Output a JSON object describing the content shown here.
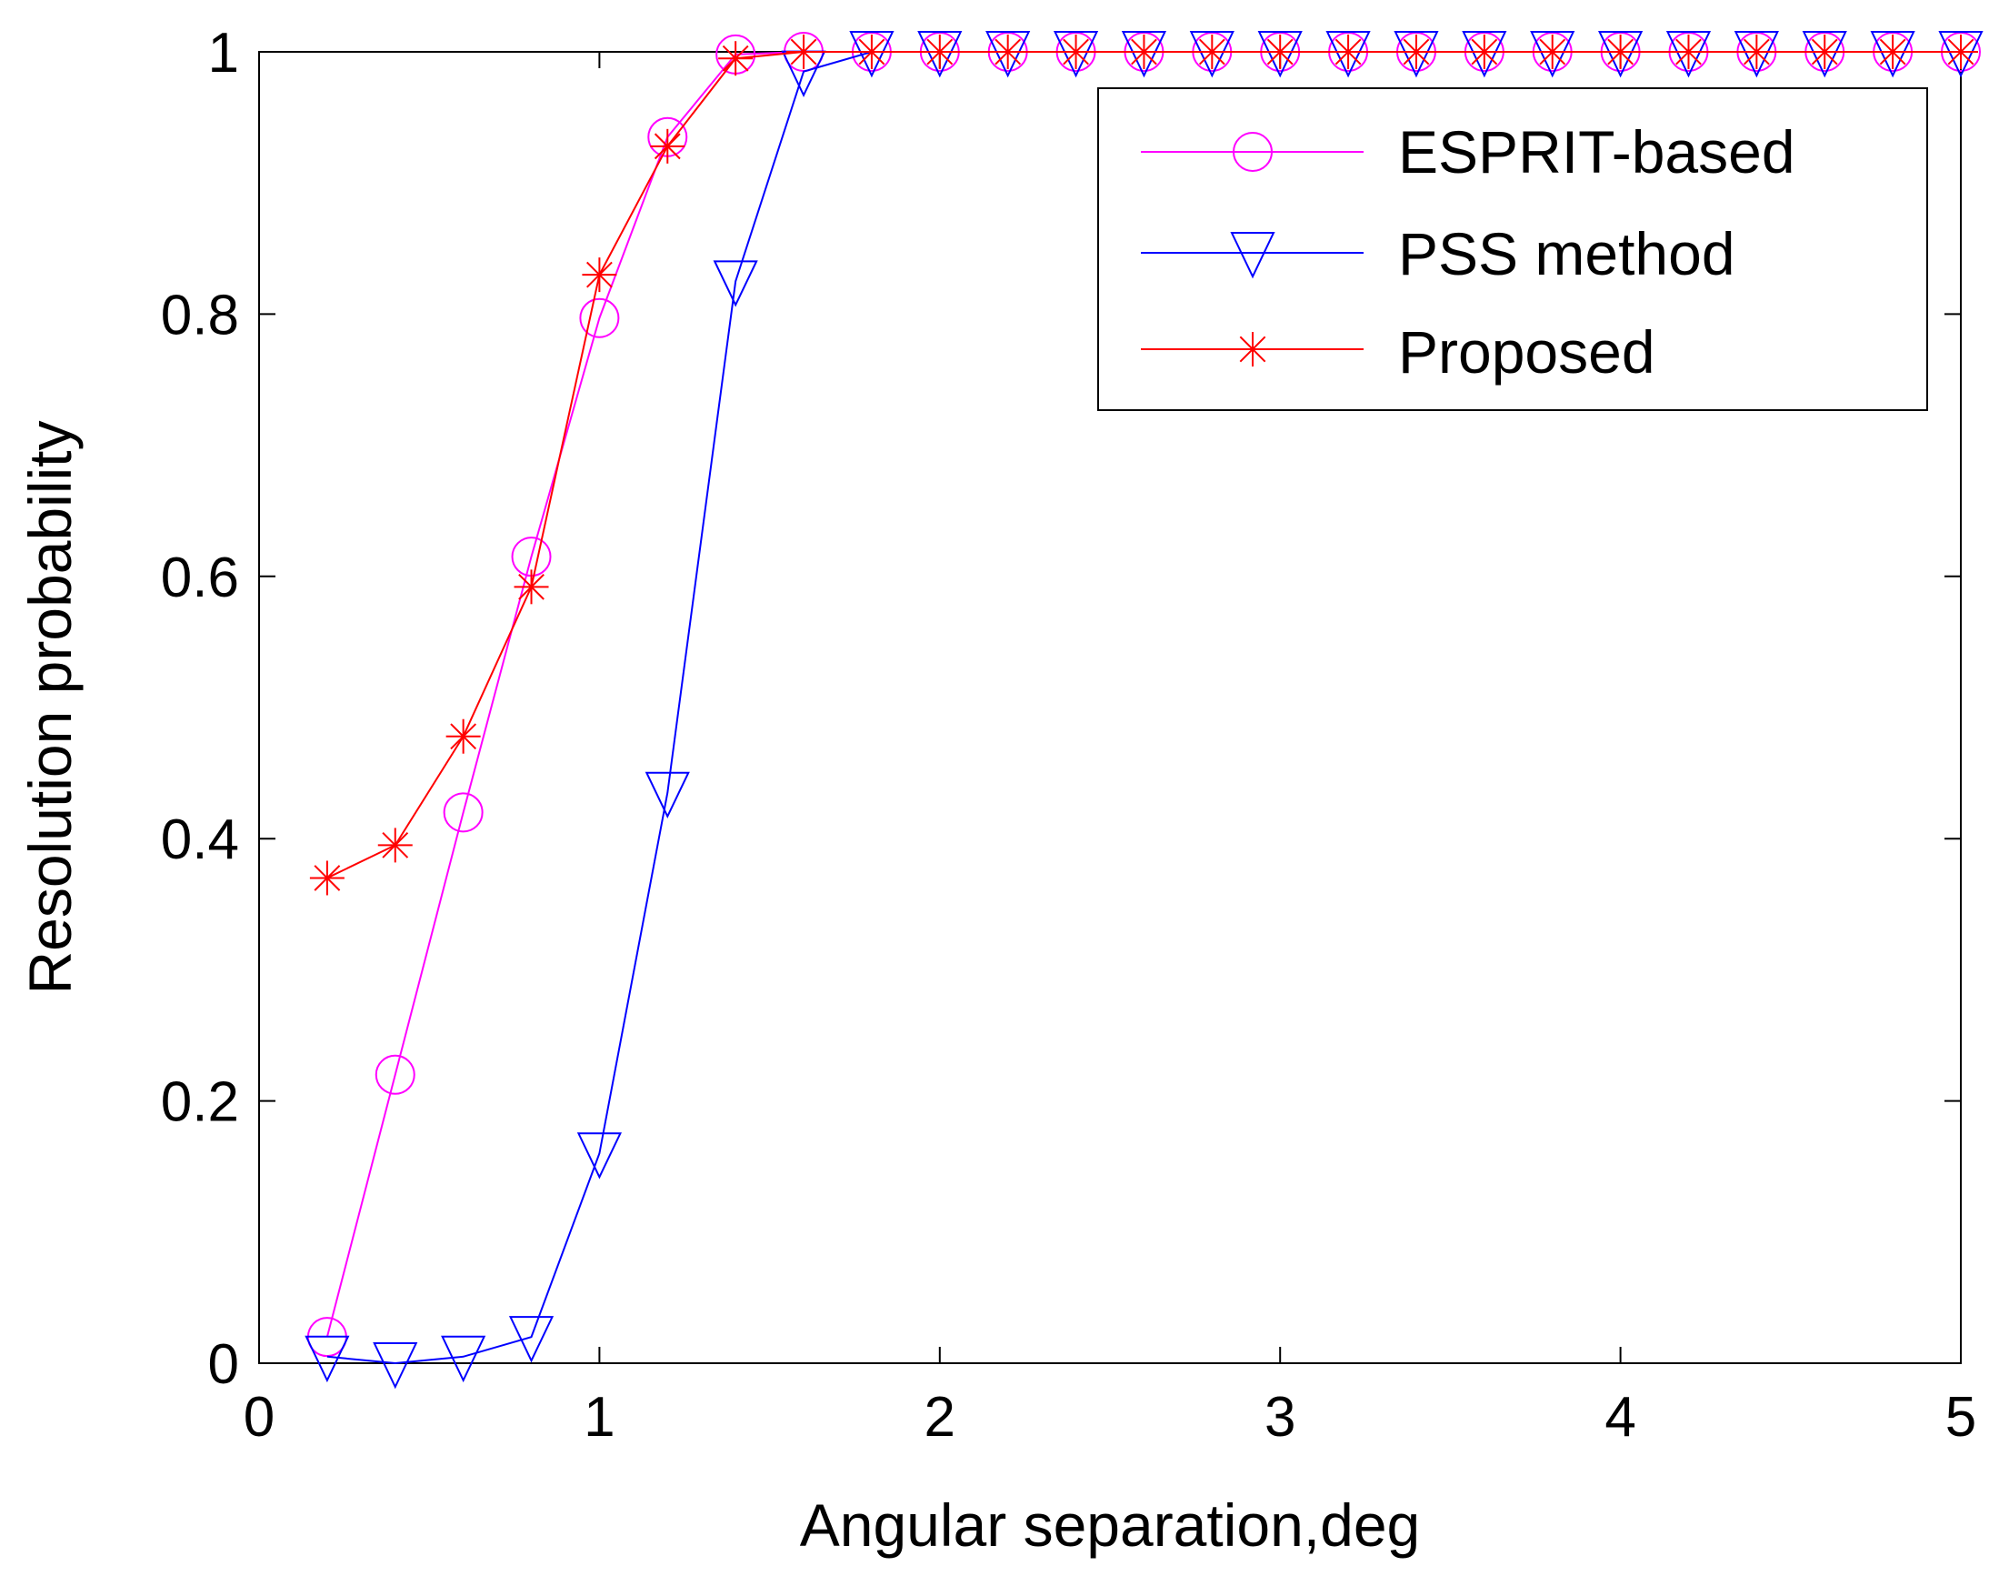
{
  "chart_data": {
    "type": "line",
    "title": "",
    "xlabel": "Angular separation,deg",
    "ylabel": "Resolution probability",
    "xlim": [
      0,
      5
    ],
    "ylim": [
      0,
      1
    ],
    "xticks": [
      "0",
      "1",
      "2",
      "3",
      "4",
      "5"
    ],
    "yticks": [
      "0",
      "0.2",
      "0.4",
      "0.6",
      "0.8",
      "1"
    ],
    "grid": false,
    "legend_position": "top-right",
    "x": [
      0.2,
      0.4,
      0.6,
      0.8,
      1.0,
      1.2,
      1.4,
      1.6,
      1.8,
      2.0,
      2.2,
      2.4,
      2.6,
      2.8,
      3.0,
      3.2,
      3.4,
      3.6,
      3.8,
      4.0,
      4.2,
      4.4,
      4.6,
      4.8,
      5.0
    ],
    "series": [
      {
        "name": "ESPRIT-based",
        "color": "#ff00ff",
        "marker": "circle",
        "values": [
          0.02,
          0.22,
          0.42,
          0.615,
          0.797,
          0.935,
          0.998,
          1.0,
          1.0,
          1.0,
          1.0,
          1.0,
          1.0,
          1.0,
          1.0,
          1.0,
          1.0,
          1.0,
          1.0,
          1.0,
          1.0,
          1.0,
          1.0,
          1.0,
          1.0
        ]
      },
      {
        "name": "PSS method",
        "color": "#0000ff",
        "marker": "triangle-down",
        "values": [
          0.005,
          0.0,
          0.005,
          0.02,
          0.16,
          0.435,
          0.825,
          0.985,
          1.0,
          1.0,
          1.0,
          1.0,
          1.0,
          1.0,
          1.0,
          1.0,
          1.0,
          1.0,
          1.0,
          1.0,
          1.0,
          1.0,
          1.0,
          1.0,
          1.0
        ]
      },
      {
        "name": "Proposed",
        "color": "#ff0000",
        "marker": "asterisk",
        "values": [
          0.37,
          0.395,
          0.478,
          0.592,
          0.83,
          0.928,
          0.995,
          1.0,
          1.0,
          1.0,
          1.0,
          1.0,
          1.0,
          1.0,
          1.0,
          1.0,
          1.0,
          1.0,
          1.0,
          1.0,
          1.0,
          1.0,
          1.0,
          1.0,
          1.0
        ]
      }
    ]
  }
}
